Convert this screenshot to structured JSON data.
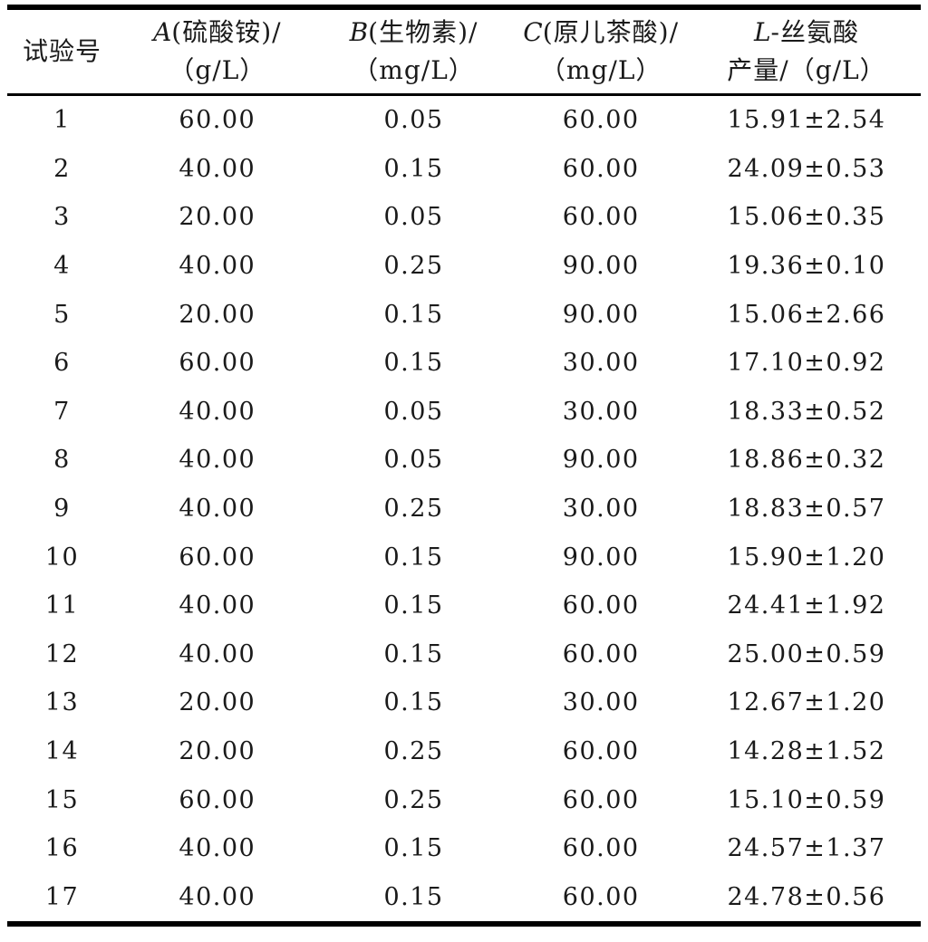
{
  "table": {
    "title_hint": "Box-Behnken design and response table",
    "colors": {
      "background": "#ffffff",
      "text": "#1a1a1a",
      "rule": "#000000"
    },
    "header": {
      "col0": {
        "label": "试验号"
      },
      "cols": [
        {
          "var": "A",
          "rest": "(硫酸铵)/",
          "unit": "（g/L）"
        },
        {
          "var": "B",
          "rest": "(生物素)/",
          "unit": "（mg/L）"
        },
        {
          "var": "C",
          "rest": "(原儿茶酸)/",
          "unit": "（mg/L）"
        },
        {
          "var": "L",
          "rest": "-丝氨酸",
          "unit": "产量/（g/L）"
        }
      ]
    },
    "rows": [
      [
        "1",
        "60.00",
        "0.05",
        "60.00",
        "15.91±2.54"
      ],
      [
        "2",
        "40.00",
        "0.15",
        "60.00",
        "24.09±0.53"
      ],
      [
        "3",
        "20.00",
        "0.05",
        "60.00",
        "15.06±0.35"
      ],
      [
        "4",
        "40.00",
        "0.25",
        "90.00",
        "19.36±0.10"
      ],
      [
        "5",
        "20.00",
        "0.15",
        "90.00",
        "15.06±2.66"
      ],
      [
        "6",
        "60.00",
        "0.15",
        "30.00",
        "17.10±0.92"
      ],
      [
        "7",
        "40.00",
        "0.05",
        "30.00",
        "18.33±0.52"
      ],
      [
        "8",
        "40.00",
        "0.05",
        "90.00",
        "18.86±0.32"
      ],
      [
        "9",
        "40.00",
        "0.25",
        "30.00",
        "18.83±0.57"
      ],
      [
        "10",
        "60.00",
        "0.15",
        "90.00",
        "15.90±1.20"
      ],
      [
        "11",
        "40.00",
        "0.15",
        "60.00",
        "24.41±1.92"
      ],
      [
        "12",
        "40.00",
        "0.15",
        "60.00",
        "25.00±0.59"
      ],
      [
        "13",
        "20.00",
        "0.15",
        "30.00",
        "12.67±1.20"
      ],
      [
        "14",
        "20.00",
        "0.25",
        "60.00",
        "14.28±1.52"
      ],
      [
        "15",
        "60.00",
        "0.25",
        "60.00",
        "15.10±0.59"
      ],
      [
        "16",
        "40.00",
        "0.15",
        "60.00",
        "24.57±1.37"
      ],
      [
        "17",
        "40.00",
        "0.15",
        "60.00",
        "24.78±0.56"
      ]
    ]
  }
}
